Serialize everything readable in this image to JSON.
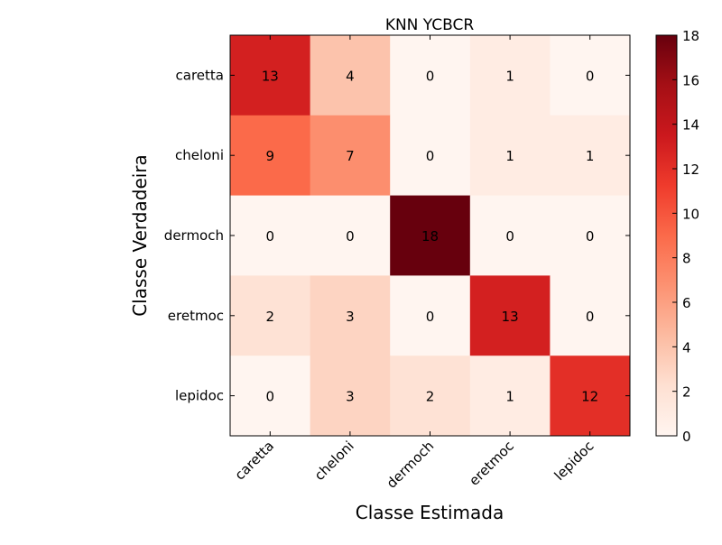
{
  "chart_data": {
    "type": "heatmap",
    "title": "KNN YCBCR",
    "xlabel": "Classe Estimada",
    "ylabel": "Classe Verdadeira",
    "x_categories": [
      "caretta",
      "cheloni",
      "dermoch",
      "eretmoc",
      "lepidoc"
    ],
    "y_categories": [
      "caretta",
      "cheloni",
      "dermoch",
      "eretmoc",
      "lepidoc"
    ],
    "values": [
      [
        13,
        4,
        0,
        1,
        0
      ],
      [
        9,
        7,
        0,
        1,
        1
      ],
      [
        0,
        0,
        18,
        0,
        0
      ],
      [
        2,
        3,
        0,
        13,
        0
      ],
      [
        0,
        3,
        2,
        1,
        12
      ]
    ],
    "colormap": "Reds",
    "colorbar": {
      "min": 0,
      "max": 18,
      "ticks": [
        "0",
        "2",
        "4",
        "6",
        "8",
        "10",
        "12",
        "14",
        "16",
        "18"
      ]
    }
  }
}
